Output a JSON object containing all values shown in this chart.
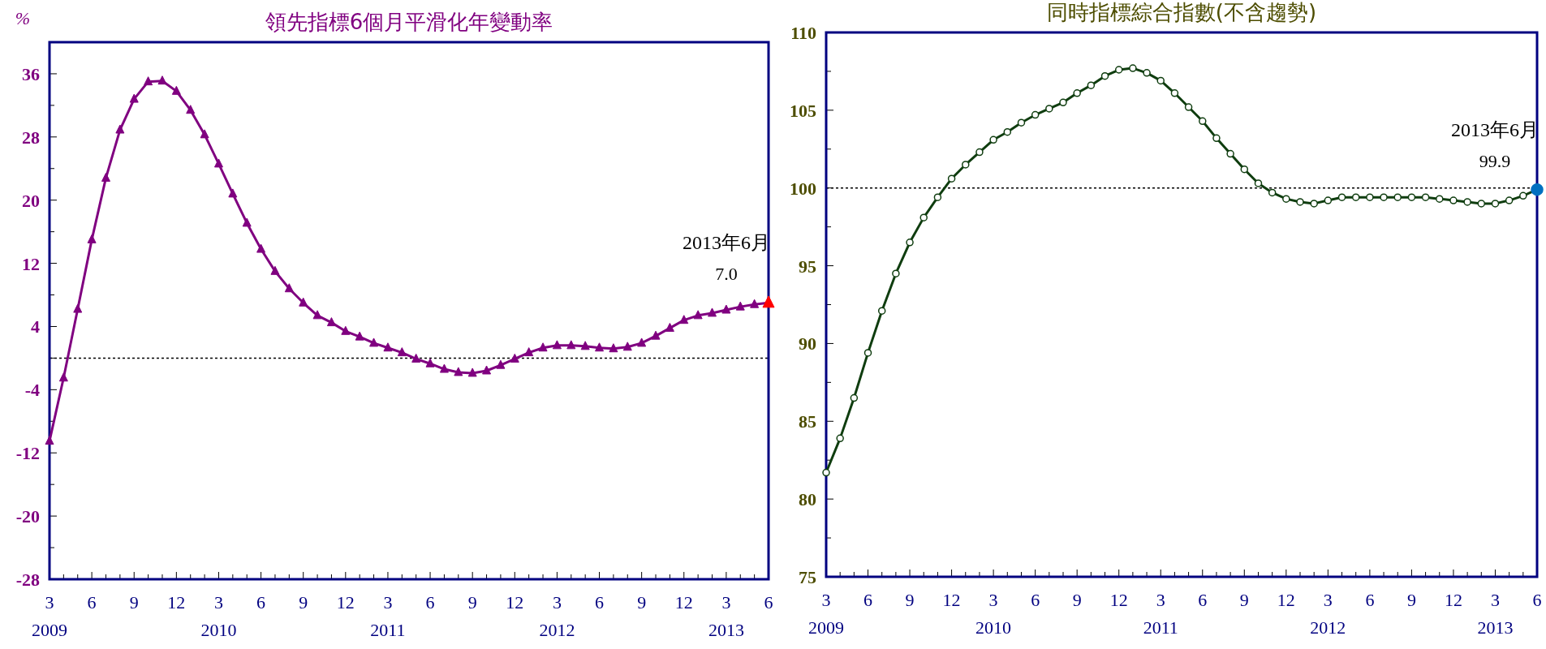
{
  "chart_data": [
    {
      "type": "line",
      "title": "領先指標6個月平滑化年變動率",
      "ylabel": "%",
      "x": [
        "2009-03",
        "2009-04",
        "2009-05",
        "2009-06",
        "2009-07",
        "2009-08",
        "2009-09",
        "2009-10",
        "2009-11",
        "2009-12",
        "2010-01",
        "2010-02",
        "2010-03",
        "2010-04",
        "2010-05",
        "2010-06",
        "2010-07",
        "2010-08",
        "2010-09",
        "2010-10",
        "2010-11",
        "2010-12",
        "2011-01",
        "2011-02",
        "2011-03",
        "2011-04",
        "2011-05",
        "2011-06",
        "2011-07",
        "2011-08",
        "2011-09",
        "2011-10",
        "2011-11",
        "2011-12",
        "2012-01",
        "2012-02",
        "2012-03",
        "2012-04",
        "2012-05",
        "2012-06",
        "2012-07",
        "2012-08",
        "2012-09",
        "2012-10",
        "2012-11",
        "2012-12",
        "2013-01",
        "2013-02",
        "2013-03",
        "2013-04",
        "2013-05",
        "2013-06"
      ],
      "xlim": [
        "2009-03",
        "2013-06"
      ],
      "xticks": [
        {
          "value": "2009-03",
          "label": "3\n2009"
        },
        {
          "value": "2009-04",
          "label": null
        },
        {
          "value": "2009-05",
          "label": null
        },
        {
          "value": "2009-06",
          "label": "6"
        },
        {
          "value": "2009-07",
          "label": null
        },
        {
          "value": "2009-08",
          "label": null
        },
        {
          "value": "2009-09",
          "label": "9"
        },
        {
          "value": "2009-10",
          "label": null
        },
        {
          "value": "2009-11",
          "label": null
        },
        {
          "value": "2009-12",
          "label": "12"
        },
        {
          "value": "2010-01",
          "label": null
        },
        {
          "value": "2010-02",
          "label": null
        },
        {
          "value": "2010-03",
          "label": "3\n2010"
        },
        {
          "value": "2010-04",
          "label": null
        },
        {
          "value": "2010-05",
          "label": null
        },
        {
          "value": "2010-06",
          "label": "6"
        },
        {
          "value": "2010-07",
          "label": null
        },
        {
          "value": "2010-08",
          "label": null
        },
        {
          "value": "2010-09",
          "label": "9"
        },
        {
          "value": "2010-10",
          "label": null
        },
        {
          "value": "2010-11",
          "label": null
        },
        {
          "value": "2010-12",
          "label": "12"
        },
        {
          "value": "2011-01",
          "label": null
        },
        {
          "value": "2011-02",
          "label": null
        },
        {
          "value": "2011-03",
          "label": "3\n2011"
        },
        {
          "value": "2011-04",
          "label": null
        },
        {
          "value": "2011-05",
          "label": null
        },
        {
          "value": "2011-06",
          "label": "6"
        },
        {
          "value": "2011-07",
          "label": null
        },
        {
          "value": "2011-08",
          "label": null
        },
        {
          "value": "2011-09",
          "label": "9"
        },
        {
          "value": "2011-10",
          "label": null
        },
        {
          "value": "2011-11",
          "label": null
        },
        {
          "value": "2011-12",
          "label": "12"
        },
        {
          "value": "2012-01",
          "label": null
        },
        {
          "value": "2012-02",
          "label": null
        },
        {
          "value": "2012-03",
          "label": "3\n2012"
        },
        {
          "value": "2012-04",
          "label": null
        },
        {
          "value": "2012-05",
          "label": null
        },
        {
          "value": "2012-06",
          "label": "6"
        },
        {
          "value": "2012-07",
          "label": null
        },
        {
          "value": "2012-08",
          "label": null
        },
        {
          "value": "2012-09",
          "label": "9"
        },
        {
          "value": "2012-10",
          "label": null
        },
        {
          "value": "2012-11",
          "label": null
        },
        {
          "value": "2012-12",
          "label": "12"
        },
        {
          "value": "2013-01",
          "label": null
        },
        {
          "value": "2013-02",
          "label": null
        },
        {
          "value": "2013-03",
          "label": "3\n2013"
        },
        {
          "value": "2013-04",
          "label": null
        },
        {
          "value": "2013-05",
          "label": null
        },
        {
          "value": "2013-06",
          "label": "6"
        }
      ],
      "ylim": [
        -28,
        40
      ],
      "yticks": [
        -28,
        {
          "value": -24,
          "label": null
        },
        -20,
        {
          "value": -16,
          "label": null
        },
        -12,
        {
          "value": -8,
          "label": null
        },
        -4,
        {
          "value": 0,
          "label": null
        },
        4,
        {
          "value": 8,
          "label": null
        },
        12,
        {
          "value": 16,
          "label": null
        },
        20,
        {
          "value": 24,
          "label": null
        },
        28,
        {
          "value": 32,
          "label": null
        },
        36
      ],
      "ref_lines": [
        {
          "axis": "y",
          "value": 0,
          "color": "#000000",
          "line_style": "dotted"
        }
      ],
      "marker": "triangle",
      "line_style": "solid",
      "grid": false,
      "annotations": [
        {
          "text": "2013年6月",
          "x": "2013-06",
          "y": 7.0
        }
      ],
      "series": [
        {
          "color": "#800080",
          "values": [
            -10.5,
            -2.5,
            6.2,
            15.0,
            22.8,
            28.9,
            32.8,
            35.0,
            35.1,
            33.8,
            31.4,
            28.3,
            24.6,
            20.8,
            17.1,
            13.8,
            11.0,
            8.8,
            7.0,
            5.4,
            4.5,
            3.4,
            2.7,
            1.9,
            1.3,
            0.7,
            -0.1,
            -0.7,
            -1.4,
            -1.8,
            -1.9,
            -1.6,
            -0.9,
            -0.1,
            0.7,
            1.3,
            1.6,
            1.6,
            1.5,
            1.3,
            1.2,
            1.4,
            1.9,
            2.8,
            3.8,
            4.8,
            5.4,
            5.7,
            6.1,
            6.5,
            6.8,
            7.0
          ]
        },
        {
          "type": "scatter",
          "x": [
            "2013-06"
          ],
          "values": [
            7.0
          ],
          "color": "#ff0000",
          "value_labels": [
            "7.0"
          ]
        }
      ]
    },
    {
      "type": "line",
      "title": "同時指標綜合指數(不含趨勢)",
      "x": [
        "2009-03",
        "2009-04",
        "2009-05",
        "2009-06",
        "2009-07",
        "2009-08",
        "2009-09",
        "2009-10",
        "2009-11",
        "2009-12",
        "2010-01",
        "2010-02",
        "2010-03",
        "2010-04",
        "2010-05",
        "2010-06",
        "2010-07",
        "2010-08",
        "2010-09",
        "2010-10",
        "2010-11",
        "2010-12",
        "2011-01",
        "2011-02",
        "2011-03",
        "2011-04",
        "2011-05",
        "2011-06",
        "2011-07",
        "2011-08",
        "2011-09",
        "2011-10",
        "2011-11",
        "2011-12",
        "2012-01",
        "2012-02",
        "2012-03",
        "2012-04",
        "2012-05",
        "2012-06",
        "2012-07",
        "2012-08",
        "2012-09",
        "2012-10",
        "2012-11",
        "2012-12",
        "2013-01",
        "2013-02",
        "2013-03",
        "2013-04",
        "2013-05",
        "2013-06"
      ],
      "xlim": [
        "2009-03",
        "2013-06"
      ],
      "xticks": [
        {
          "value": "2009-03",
          "label": "3\n2009"
        },
        {
          "value": "2009-04",
          "label": null
        },
        {
          "value": "2009-05",
          "label": null
        },
        {
          "value": "2009-06",
          "label": "6"
        },
        {
          "value": "2009-07",
          "label": null
        },
        {
          "value": "2009-08",
          "label": null
        },
        {
          "value": "2009-09",
          "label": "9"
        },
        {
          "value": "2009-10",
          "label": null
        },
        {
          "value": "2009-11",
          "label": null
        },
        {
          "value": "2009-12",
          "label": "12"
        },
        {
          "value": "2010-01",
          "label": null
        },
        {
          "value": "2010-02",
          "label": null
        },
        {
          "value": "2010-03",
          "label": "3\n2010"
        },
        {
          "value": "2010-04",
          "label": null
        },
        {
          "value": "2010-05",
          "label": null
        },
        {
          "value": "2010-06",
          "label": "6"
        },
        {
          "value": "2010-07",
          "label": null
        },
        {
          "value": "2010-08",
          "label": null
        },
        {
          "value": "2010-09",
          "label": "9"
        },
        {
          "value": "2010-10",
          "label": null
        },
        {
          "value": "2010-11",
          "label": null
        },
        {
          "value": "2010-12",
          "label": "12"
        },
        {
          "value": "2011-01",
          "label": null
        },
        {
          "value": "2011-02",
          "label": null
        },
        {
          "value": "2011-03",
          "label": "3\n2011"
        },
        {
          "value": "2011-04",
          "label": null
        },
        {
          "value": "2011-05",
          "label": null
        },
        {
          "value": "2011-06",
          "label": "6"
        },
        {
          "value": "2011-07",
          "label": null
        },
        {
          "value": "2011-08",
          "label": null
        },
        {
          "value": "2011-09",
          "label": "9"
        },
        {
          "value": "2011-10",
          "label": null
        },
        {
          "value": "2011-11",
          "label": null
        },
        {
          "value": "2011-12",
          "label": "12"
        },
        {
          "value": "2012-01",
          "label": null
        },
        {
          "value": "2012-02",
          "label": null
        },
        {
          "value": "2012-03",
          "label": "3\n2012"
        },
        {
          "value": "2012-04",
          "label": null
        },
        {
          "value": "2012-05",
          "label": null
        },
        {
          "value": "2012-06",
          "label": "6"
        },
        {
          "value": "2012-07",
          "label": null
        },
        {
          "value": "2012-08",
          "label": null
        },
        {
          "value": "2012-09",
          "label": "9"
        },
        {
          "value": "2012-10",
          "label": null
        },
        {
          "value": "2012-11",
          "label": null
        },
        {
          "value": "2012-12",
          "label": "12"
        },
        {
          "value": "2013-01",
          "label": null
        },
        {
          "value": "2013-02",
          "label": null
        },
        {
          "value": "2013-03",
          "label": "3\n2013"
        },
        {
          "value": "2013-04",
          "label": null
        },
        {
          "value": "2013-05",
          "label": null
        },
        {
          "value": "2013-06",
          "label": "6"
        }
      ],
      "ylim": [
        75,
        110
      ],
      "yticks": [
        75,
        {
          "value": 77.5,
          "label": null
        },
        80,
        {
          "value": 82.5,
          "label": null
        },
        85,
        {
          "value": 87.5,
          "label": null
        },
        90,
        {
          "value": 92.5,
          "label": null
        },
        95,
        {
          "value": 97.5,
          "label": null
        },
        100,
        {
          "value": 102.5,
          "label": null
        },
        105,
        {
          "value": 107.5,
          "label": null
        },
        110
      ],
      "ref_lines": [
        {
          "axis": "y",
          "value": 100,
          "color": "#000000",
          "line_style": "dotted"
        }
      ],
      "marker": "circle",
      "line_style": "solid",
      "grid": false,
      "annotations": [
        {
          "text": "2013年6月",
          "x": "2013-06",
          "y": 99.9
        }
      ],
      "series": [
        {
          "color": "#0f3d0f",
          "values": [
            81.7,
            83.9,
            86.5,
            89.4,
            92.1,
            94.5,
            96.5,
            98.1,
            99.4,
            100.6,
            101.5,
            102.3,
            103.1,
            103.6,
            104.2,
            104.7,
            105.1,
            105.5,
            106.1,
            106.6,
            107.2,
            107.6,
            107.7,
            107.4,
            106.9,
            106.1,
            105.2,
            104.3,
            103.2,
            102.2,
            101.2,
            100.3,
            99.7,
            99.3,
            99.1,
            99.0,
            99.2,
            99.4,
            99.4,
            99.4,
            99.4,
            99.4,
            99.4,
            99.4,
            99.3,
            99.2,
            99.1,
            99.0,
            99.0,
            99.2,
            99.5,
            99.9
          ]
        },
        {
          "type": "scatter",
          "x": [
            "2013-06"
          ],
          "values": [
            99.9
          ],
          "color": "#0070c0",
          "value_labels": [
            "99.9"
          ]
        }
      ]
    }
  ]
}
